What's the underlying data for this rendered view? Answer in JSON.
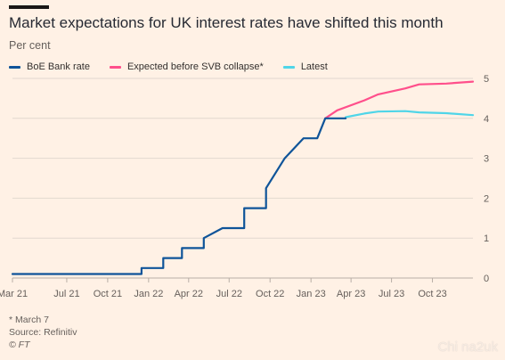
{
  "header": {
    "title": "Market expectations for UK interest rates have shifted this month",
    "subtitle": "Per cent"
  },
  "footer": {
    "note": "* March 7",
    "source": "Source: Refinitiv",
    "credit": "© FT"
  },
  "watermark": "Chi na2uk",
  "colors": {
    "background": "#fff1e5",
    "bank_rate": "#0f5499",
    "expected": "#ff4f8b",
    "latest": "#4fd5e8",
    "grid": "#e2d8cf"
  },
  "chart_data": {
    "type": "line",
    "xlim": [
      "2021-03-01",
      "2023-12-31"
    ],
    "ylim": [
      0,
      5
    ],
    "y_ticks": [
      0,
      1,
      2,
      3,
      4,
      5
    ],
    "x_ticks": [
      {
        "label": "Mar 21",
        "date": "2021-03-01"
      },
      {
        "label": "Jul 21",
        "date": "2021-07-01"
      },
      {
        "label": "Oct 21",
        "date": "2021-10-01"
      },
      {
        "label": "Jan 22",
        "date": "2022-01-01"
      },
      {
        "label": "Apr 22",
        "date": "2022-04-01"
      },
      {
        "label": "Jul 22",
        "date": "2022-07-01"
      },
      {
        "label": "Oct 22",
        "date": "2022-10-01"
      },
      {
        "label": "Jan 23",
        "date": "2023-01-01"
      },
      {
        "label": "Apr 23",
        "date": "2023-04-01"
      },
      {
        "label": "Jul 23",
        "date": "2023-07-01"
      },
      {
        "label": "Oct 23",
        "date": "2023-10-01"
      }
    ],
    "grid": true,
    "legend_position": "top",
    "series": [
      {
        "name": "BoE Bank rate",
        "color": "#0f5499",
        "points": [
          [
            "2021-03-01",
            0.1
          ],
          [
            "2021-12-16",
            0.1
          ],
          [
            "2021-12-16",
            0.25
          ],
          [
            "2022-02-03",
            0.25
          ],
          [
            "2022-02-03",
            0.5
          ],
          [
            "2022-03-17",
            0.5
          ],
          [
            "2022-03-17",
            0.75
          ],
          [
            "2022-05-05",
            0.75
          ],
          [
            "2022-05-05",
            1.0
          ],
          [
            "2022-06-16",
            1.25
          ],
          [
            "2022-08-04",
            1.25
          ],
          [
            "2022-08-04",
            1.75
          ],
          [
            "2022-09-22",
            1.75
          ],
          [
            "2022-09-22",
            2.25
          ],
          [
            "2022-11-03",
            3.0
          ],
          [
            "2022-12-15",
            3.5
          ],
          [
            "2023-01-15",
            3.5
          ],
          [
            "2023-02-02",
            4.0
          ],
          [
            "2023-03-20",
            4.0
          ]
        ]
      },
      {
        "name": "Expected before SVB collapse*",
        "color": "#ff4f8b",
        "points": [
          [
            "2023-02-02",
            4.0
          ],
          [
            "2023-03-01",
            4.2
          ],
          [
            "2023-05-01",
            4.45
          ],
          [
            "2023-06-01",
            4.6
          ],
          [
            "2023-08-01",
            4.75
          ],
          [
            "2023-09-01",
            4.85
          ],
          [
            "2023-11-01",
            4.87
          ],
          [
            "2023-12-31",
            4.92
          ]
        ]
      },
      {
        "name": "Latest",
        "color": "#4fd5e8",
        "points": [
          [
            "2023-03-20",
            4.03
          ],
          [
            "2023-05-01",
            4.12
          ],
          [
            "2023-06-01",
            4.17
          ],
          [
            "2023-08-01",
            4.18
          ],
          [
            "2023-09-01",
            4.15
          ],
          [
            "2023-11-01",
            4.13
          ],
          [
            "2023-12-31",
            4.08
          ]
        ]
      }
    ]
  }
}
